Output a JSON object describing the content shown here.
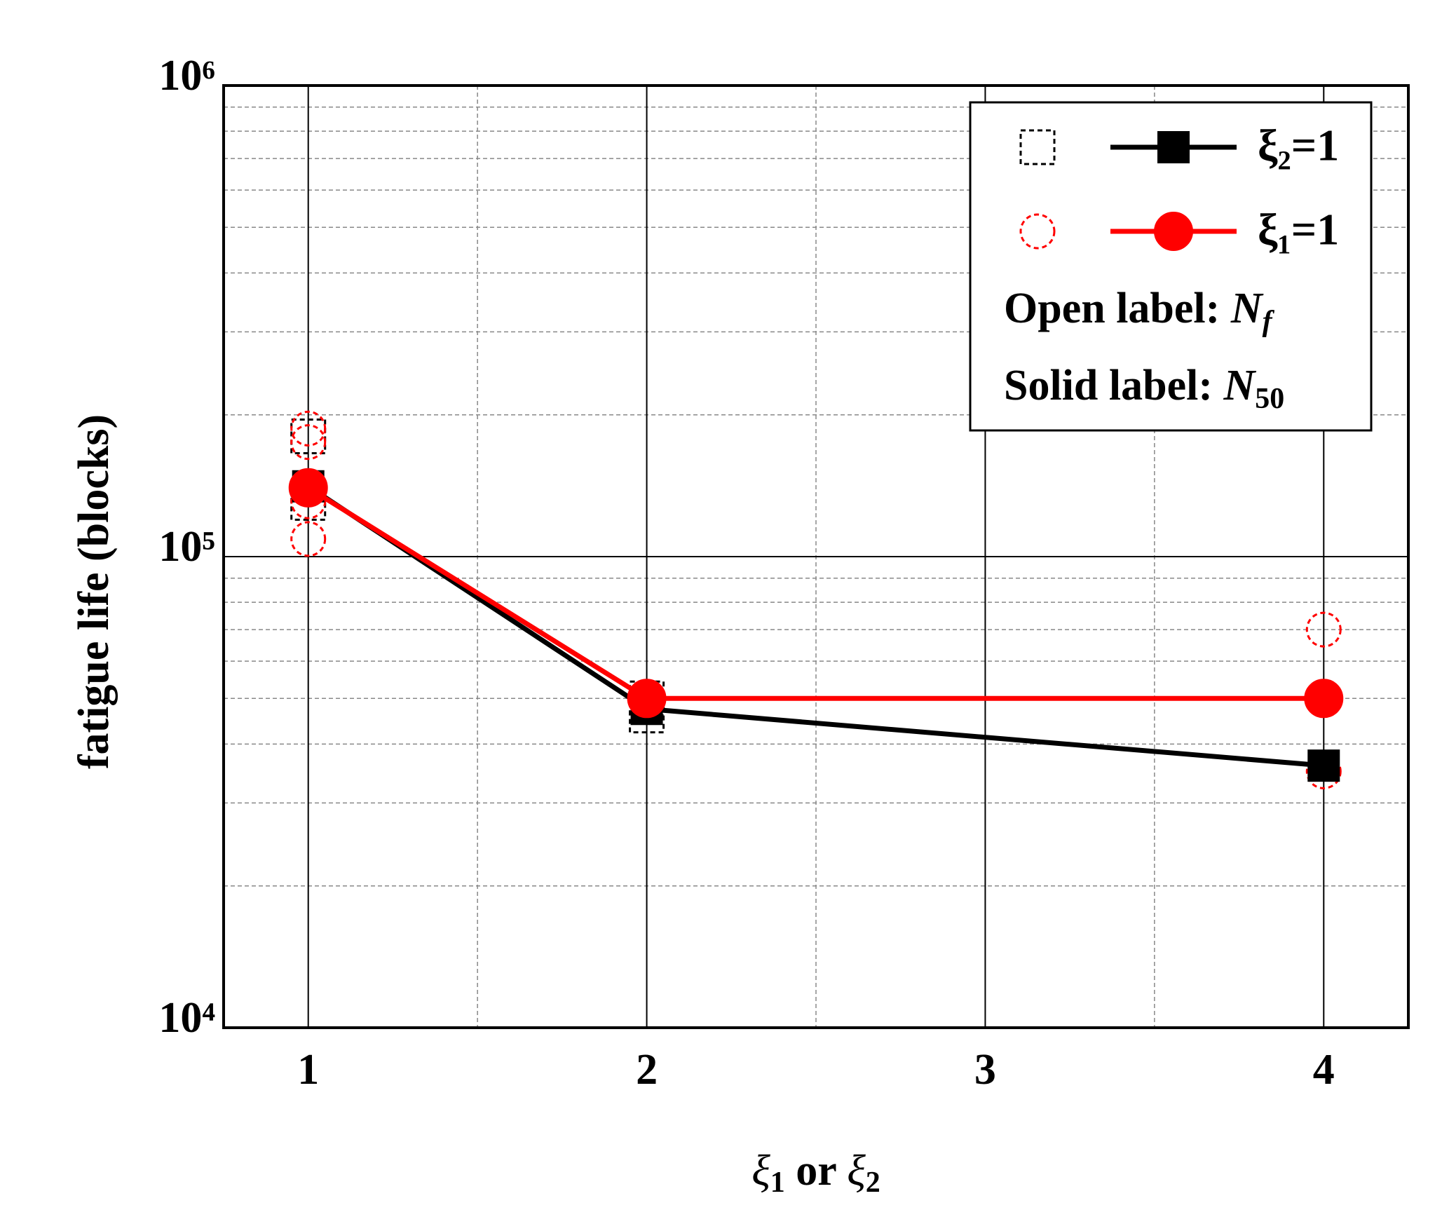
{
  "chart_data": {
    "type": "line",
    "x_label": {
      "symbol1": "ξ",
      "sub1": "1",
      "middle": " or ",
      "symbol2": "ξ",
      "sub2": "2"
    },
    "y_label": "fatigue life (blocks)",
    "xlim": [
      0.75,
      4.25
    ],
    "xticks": [
      1,
      2,
      3,
      4
    ],
    "xminor": [
      1.5,
      2.5,
      3.5
    ],
    "ylim": [
      10000,
      1000000
    ],
    "log_y": true,
    "yticks": [
      {
        "value": 10000,
        "label": "10⁴"
      },
      {
        "value": 100000,
        "label": "10⁵"
      },
      {
        "value": 1000000,
        "label": "10⁶"
      }
    ],
    "yminor": [
      20000,
      30000,
      40000,
      50000,
      60000,
      70000,
      80000,
      90000,
      200000,
      300000,
      400000,
      500000,
      600000,
      700000,
      800000,
      900000
    ],
    "grid": true,
    "legend_position": "upper right",
    "series": [
      {
        "name": "ξ₂=1",
        "color": "#000000",
        "marker": "square",
        "x": [
          1,
          2,
          4
        ],
        "values": [
          141000,
          47500,
          36000
        ],
        "open_points": {
          "x": [
            1,
            1,
            2,
            2
          ],
          "values": [
            180000,
            130000,
            50000,
            46000
          ]
        }
      },
      {
        "name": "ξ₁=1",
        "color": "#ff0000",
        "marker": "circle",
        "x": [
          1,
          2,
          4
        ],
        "values": [
          140000,
          50000,
          50000
        ],
        "open_points": {
          "x": [
            1,
            1,
            1,
            1,
            4,
            4
          ],
          "values": [
            187000,
            175000,
            131000,
            109000,
            70000,
            35000
          ]
        }
      }
    ],
    "legend_notes": [
      {
        "label": "Open label: ",
        "symbol": "N",
        "subscript": "f"
      },
      {
        "label": "Solid label: ",
        "symbol": "N",
        "subscript": "50"
      }
    ]
  }
}
